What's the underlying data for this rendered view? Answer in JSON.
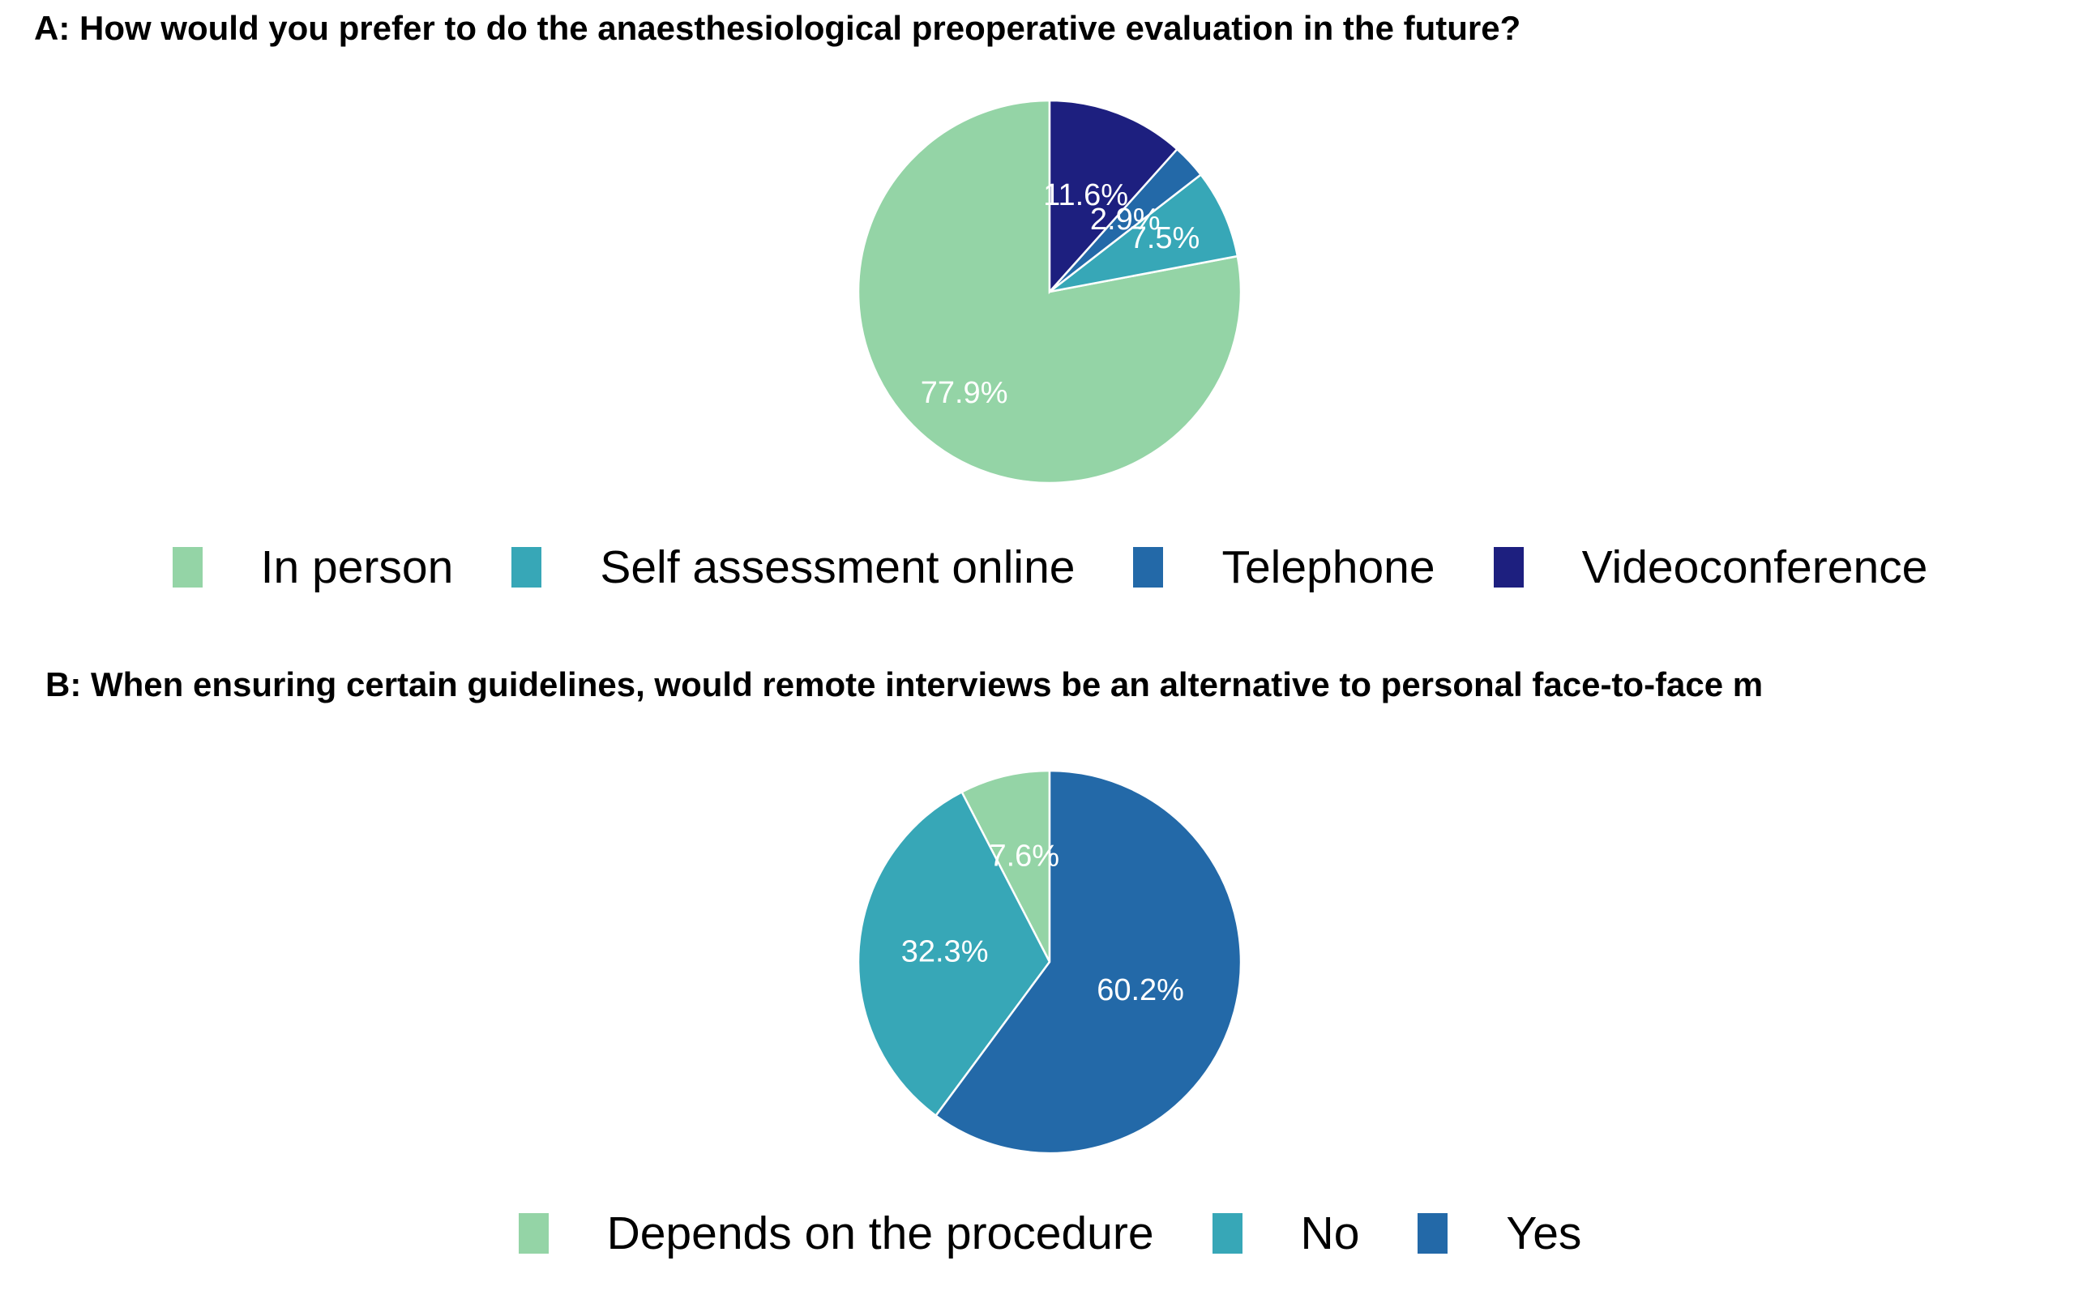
{
  "chart_data": [
    {
      "type": "pie",
      "title": "A:  How would you prefer to do the anaesthesiological preoperative evaluation in the future?",
      "categories": [
        "In person",
        "Self assessment online",
        "Telephone",
        "Videoconference"
      ],
      "values": [
        77.9,
        7.5,
        2.9,
        11.6
      ],
      "labels": [
        "77.9%",
        "7.5%",
        "2.9%",
        "11.6%"
      ],
      "colors": [
        "#94D4A6",
        "#37A7B7",
        "#2369A8",
        "#1D1F7F"
      ],
      "legend_position": "bottom"
    },
    {
      "type": "pie",
      "title": "B:  When ensuring certain guidelines, would remote interviews be an alternative to personal face-to-face m",
      "categories": [
        "Depends on the procedure",
        "No",
        "Yes"
      ],
      "values": [
        7.6,
        32.3,
        60.2
      ],
      "labels": [
        "7.6%",
        "32.3%",
        "60.2%"
      ],
      "colors": [
        "#94D4A6",
        "#37A7B7",
        "#2369A8"
      ],
      "legend_position": "bottom"
    }
  ]
}
